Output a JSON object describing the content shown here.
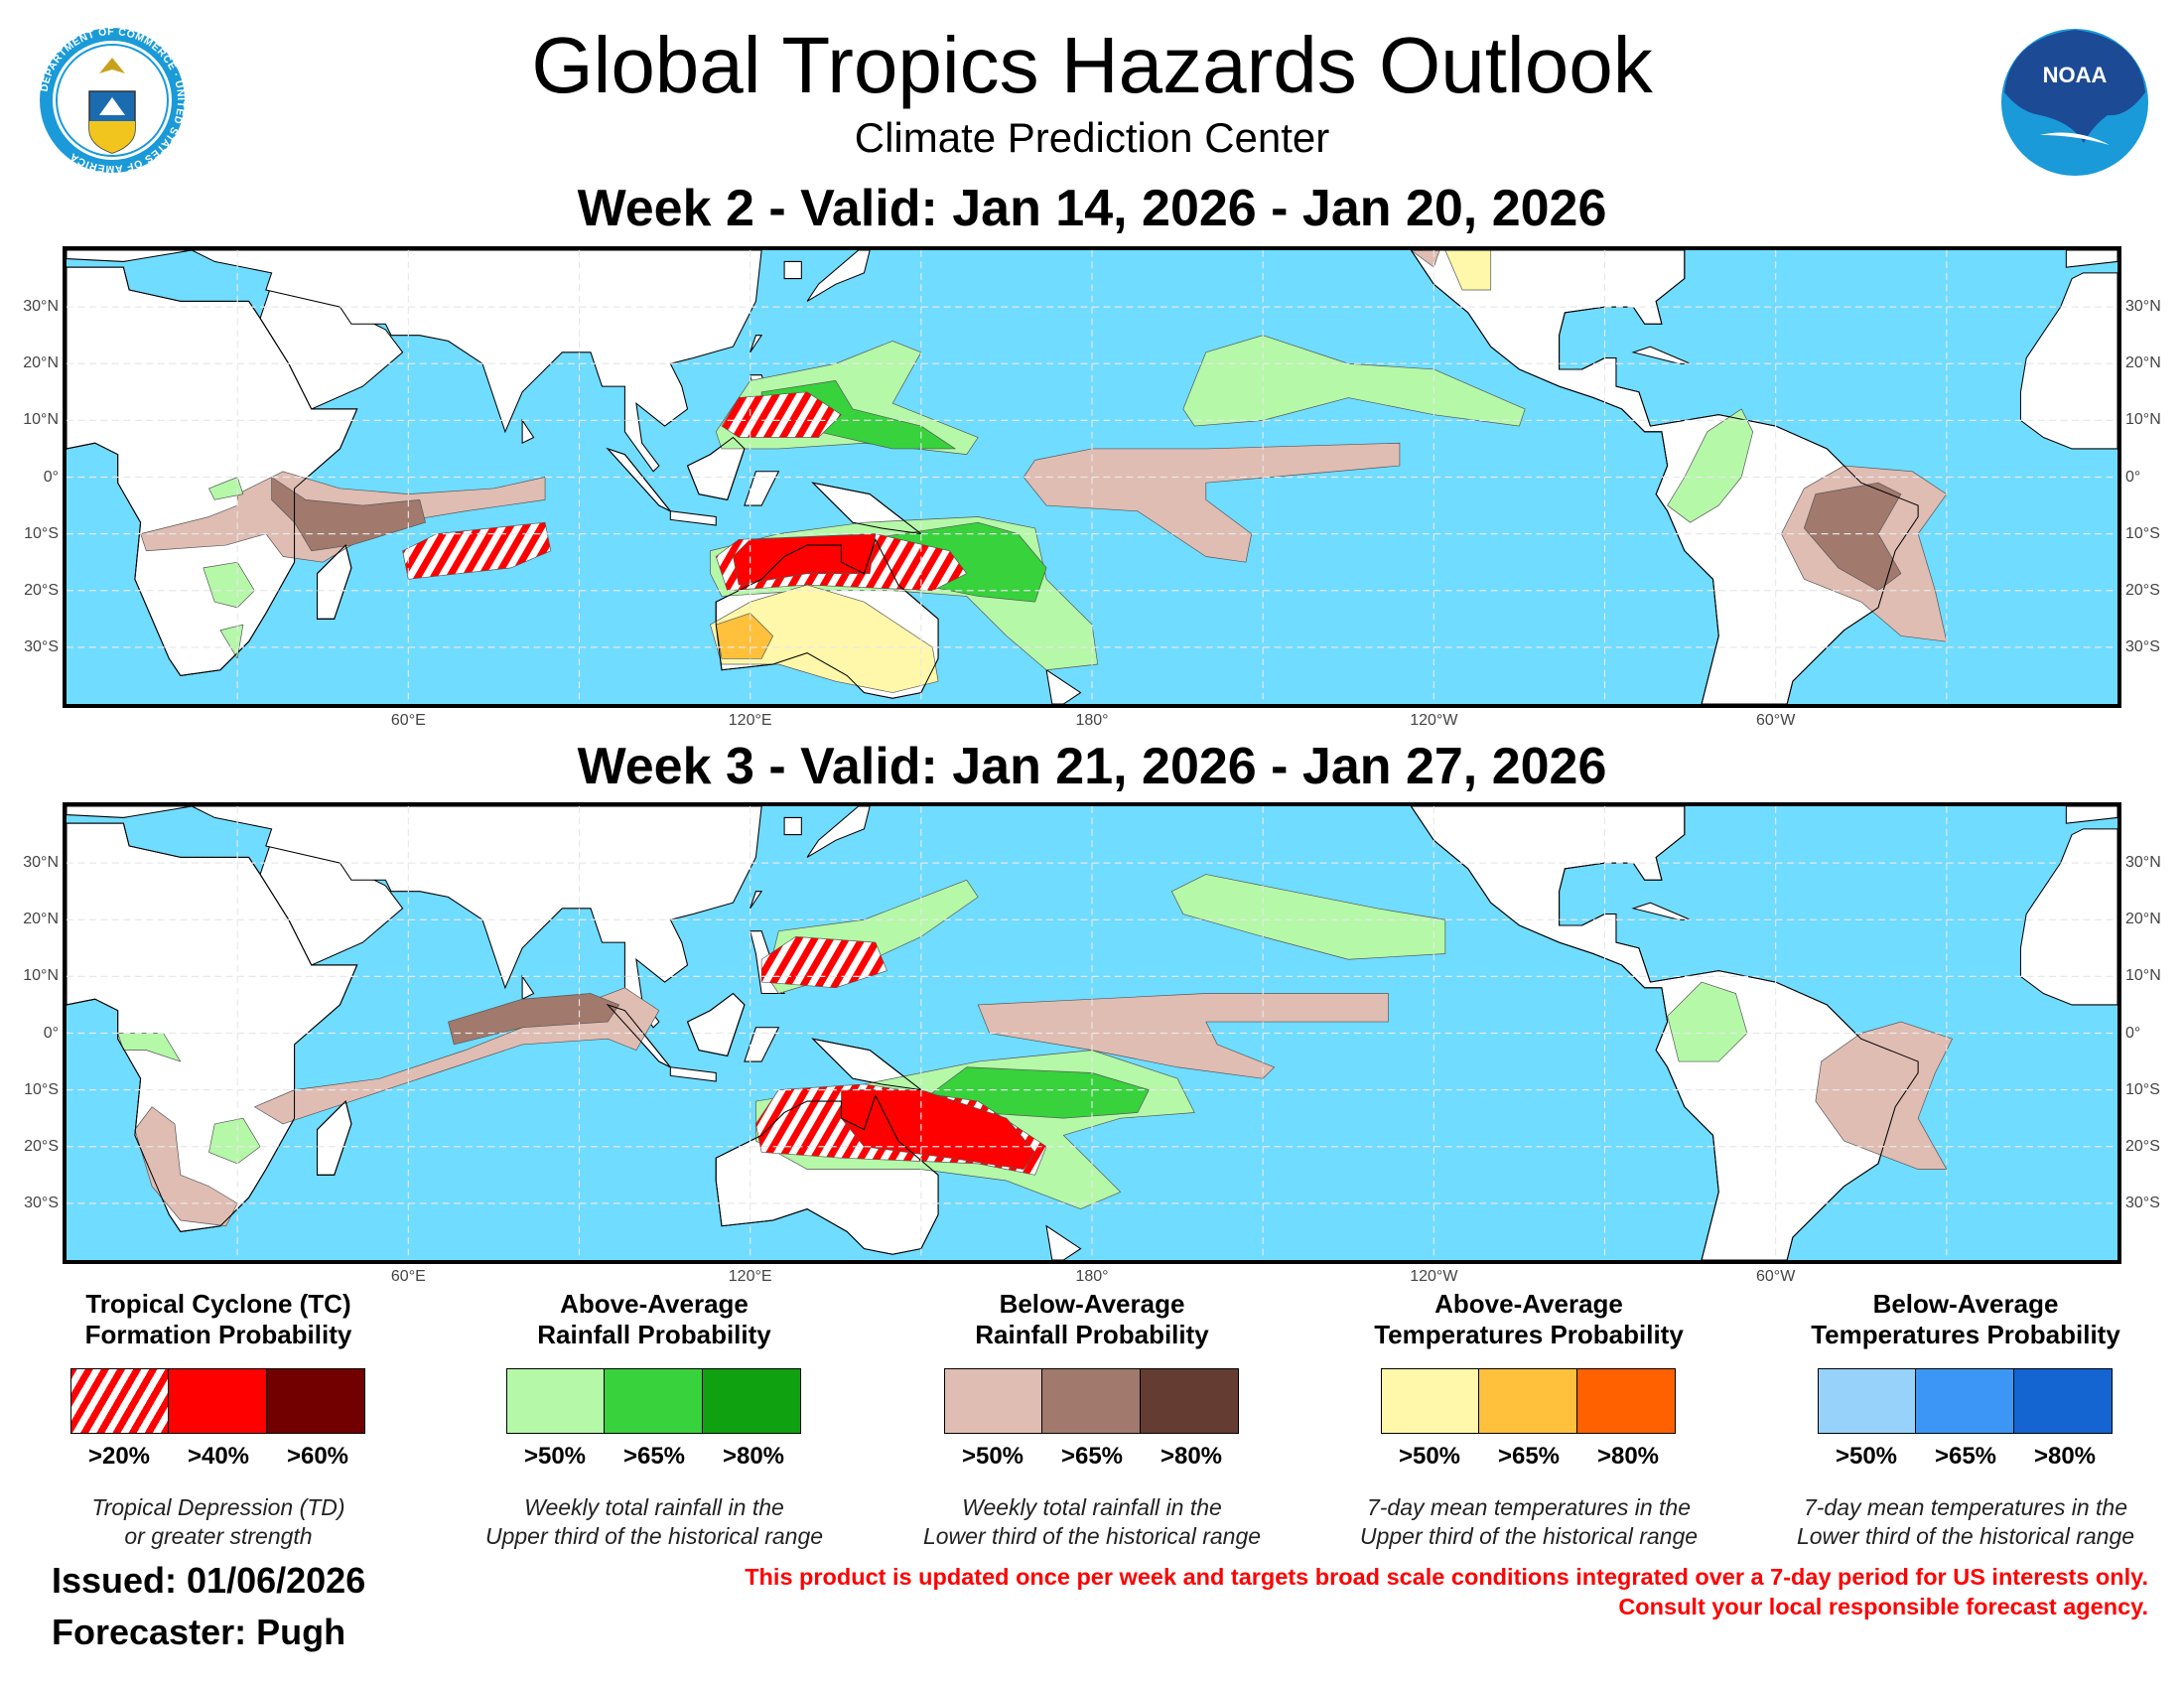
{
  "header": {
    "title": "Global Tropics Hazards Outlook",
    "subtitle": "Climate Prediction Center",
    "doc_seal_text": "DEPARTMENT OF COMMERCE · UNITED STATES OF AMERICA",
    "noaa_logo_text": "NOAA"
  },
  "maps": [
    {
      "title": "Week 2 - Valid: Jan 14, 2026 - Jan 20, 2026"
    },
    {
      "title": "Week 3 - Valid: Jan 21, 2026 - Jan 27, 2026"
    }
  ],
  "axes": {
    "lon_range": [
      0,
      360
    ],
    "lat_range": [
      -40,
      40
    ],
    "lat_ticks": [
      {
        "value": 30,
        "label": "30°N"
      },
      {
        "value": 20,
        "label": "20°N"
      },
      {
        "value": 10,
        "label": "10°N"
      },
      {
        "value": 0,
        "label": "0°"
      },
      {
        "value": -10,
        "label": "10°S"
      },
      {
        "value": -20,
        "label": "20°S"
      },
      {
        "value": -30,
        "label": "30°S"
      }
    ],
    "lon_ticks": [
      {
        "value": 60,
        "label": "60°E"
      },
      {
        "value": 120,
        "label": "120°E"
      },
      {
        "value": 180,
        "label": "180°"
      },
      {
        "value": 240,
        "label": "120°W"
      },
      {
        "value": 300,
        "label": "60°W"
      }
    ]
  },
  "colors": {
    "ocean": "#70dcff",
    "land": "#ffffff",
    "grid": "#e8e8e8"
  },
  "legend": [
    {
      "title": [
        "Tropical Cyclone (TC)",
        "Formation Probability"
      ],
      "swatches": [
        {
          "label": ">20%",
          "color": "hatch-red"
        },
        {
          "label": ">40%",
          "color": "#ff0000"
        },
        {
          "label": ">60%",
          "color": "#730000"
        }
      ],
      "description": [
        "Tropical Depression (TD)",
        "or greater strength"
      ]
    },
    {
      "title": [
        "Above-Average",
        "Rainfall Probability"
      ],
      "swatches": [
        {
          "label": ">50%",
          "color": "#b4f8a8"
        },
        {
          "label": ">65%",
          "color": "#37d23c"
        },
        {
          "label": ">80%",
          "color": "#0fa110"
        }
      ],
      "description": [
        "Weekly total rainfall in the",
        "Upper third of the historical range"
      ]
    },
    {
      "title": [
        "Below-Average",
        "Rainfall Probability"
      ],
      "swatches": [
        {
          "label": ">50%",
          "color": "#dfbdb3"
        },
        {
          "label": ">65%",
          "color": "#a1796d"
        },
        {
          "label": ">80%",
          "color": "#643c32"
        }
      ],
      "description": [
        "Weekly total rainfall in the",
        "Lower third of the historical range"
      ]
    },
    {
      "title": [
        "Above-Average",
        "Temperatures Probability"
      ],
      "swatches": [
        {
          "label": ">50%",
          "color": "#fff8aa"
        },
        {
          "label": ">65%",
          "color": "#ffc03c"
        },
        {
          "label": ">80%",
          "color": "#ff6000"
        }
      ],
      "description": [
        "7-day mean temperatures in the",
        "Upper third of the historical range"
      ]
    },
    {
      "title": [
        "Below-Average",
        "Temperatures Probability"
      ],
      "swatches": [
        {
          "label": ">50%",
          "color": "#96d2fa"
        },
        {
          "label": ">65%",
          "color": "#3c96f5"
        },
        {
          "label": ">80%",
          "color": "#1464d2"
        }
      ],
      "description": [
        "7-day mean temperatures in the",
        "Lower third of the historical range"
      ]
    }
  ],
  "footer": {
    "issued": "Issued: 01/06/2026",
    "forecaster": "Forecaster: Pugh",
    "disclaimer_line1": "This product is updated once per week and targets broad scale conditions integrated over a 7-day period for US interests only.",
    "disclaimer_line2": "Consult your local responsible forecast agency."
  }
}
